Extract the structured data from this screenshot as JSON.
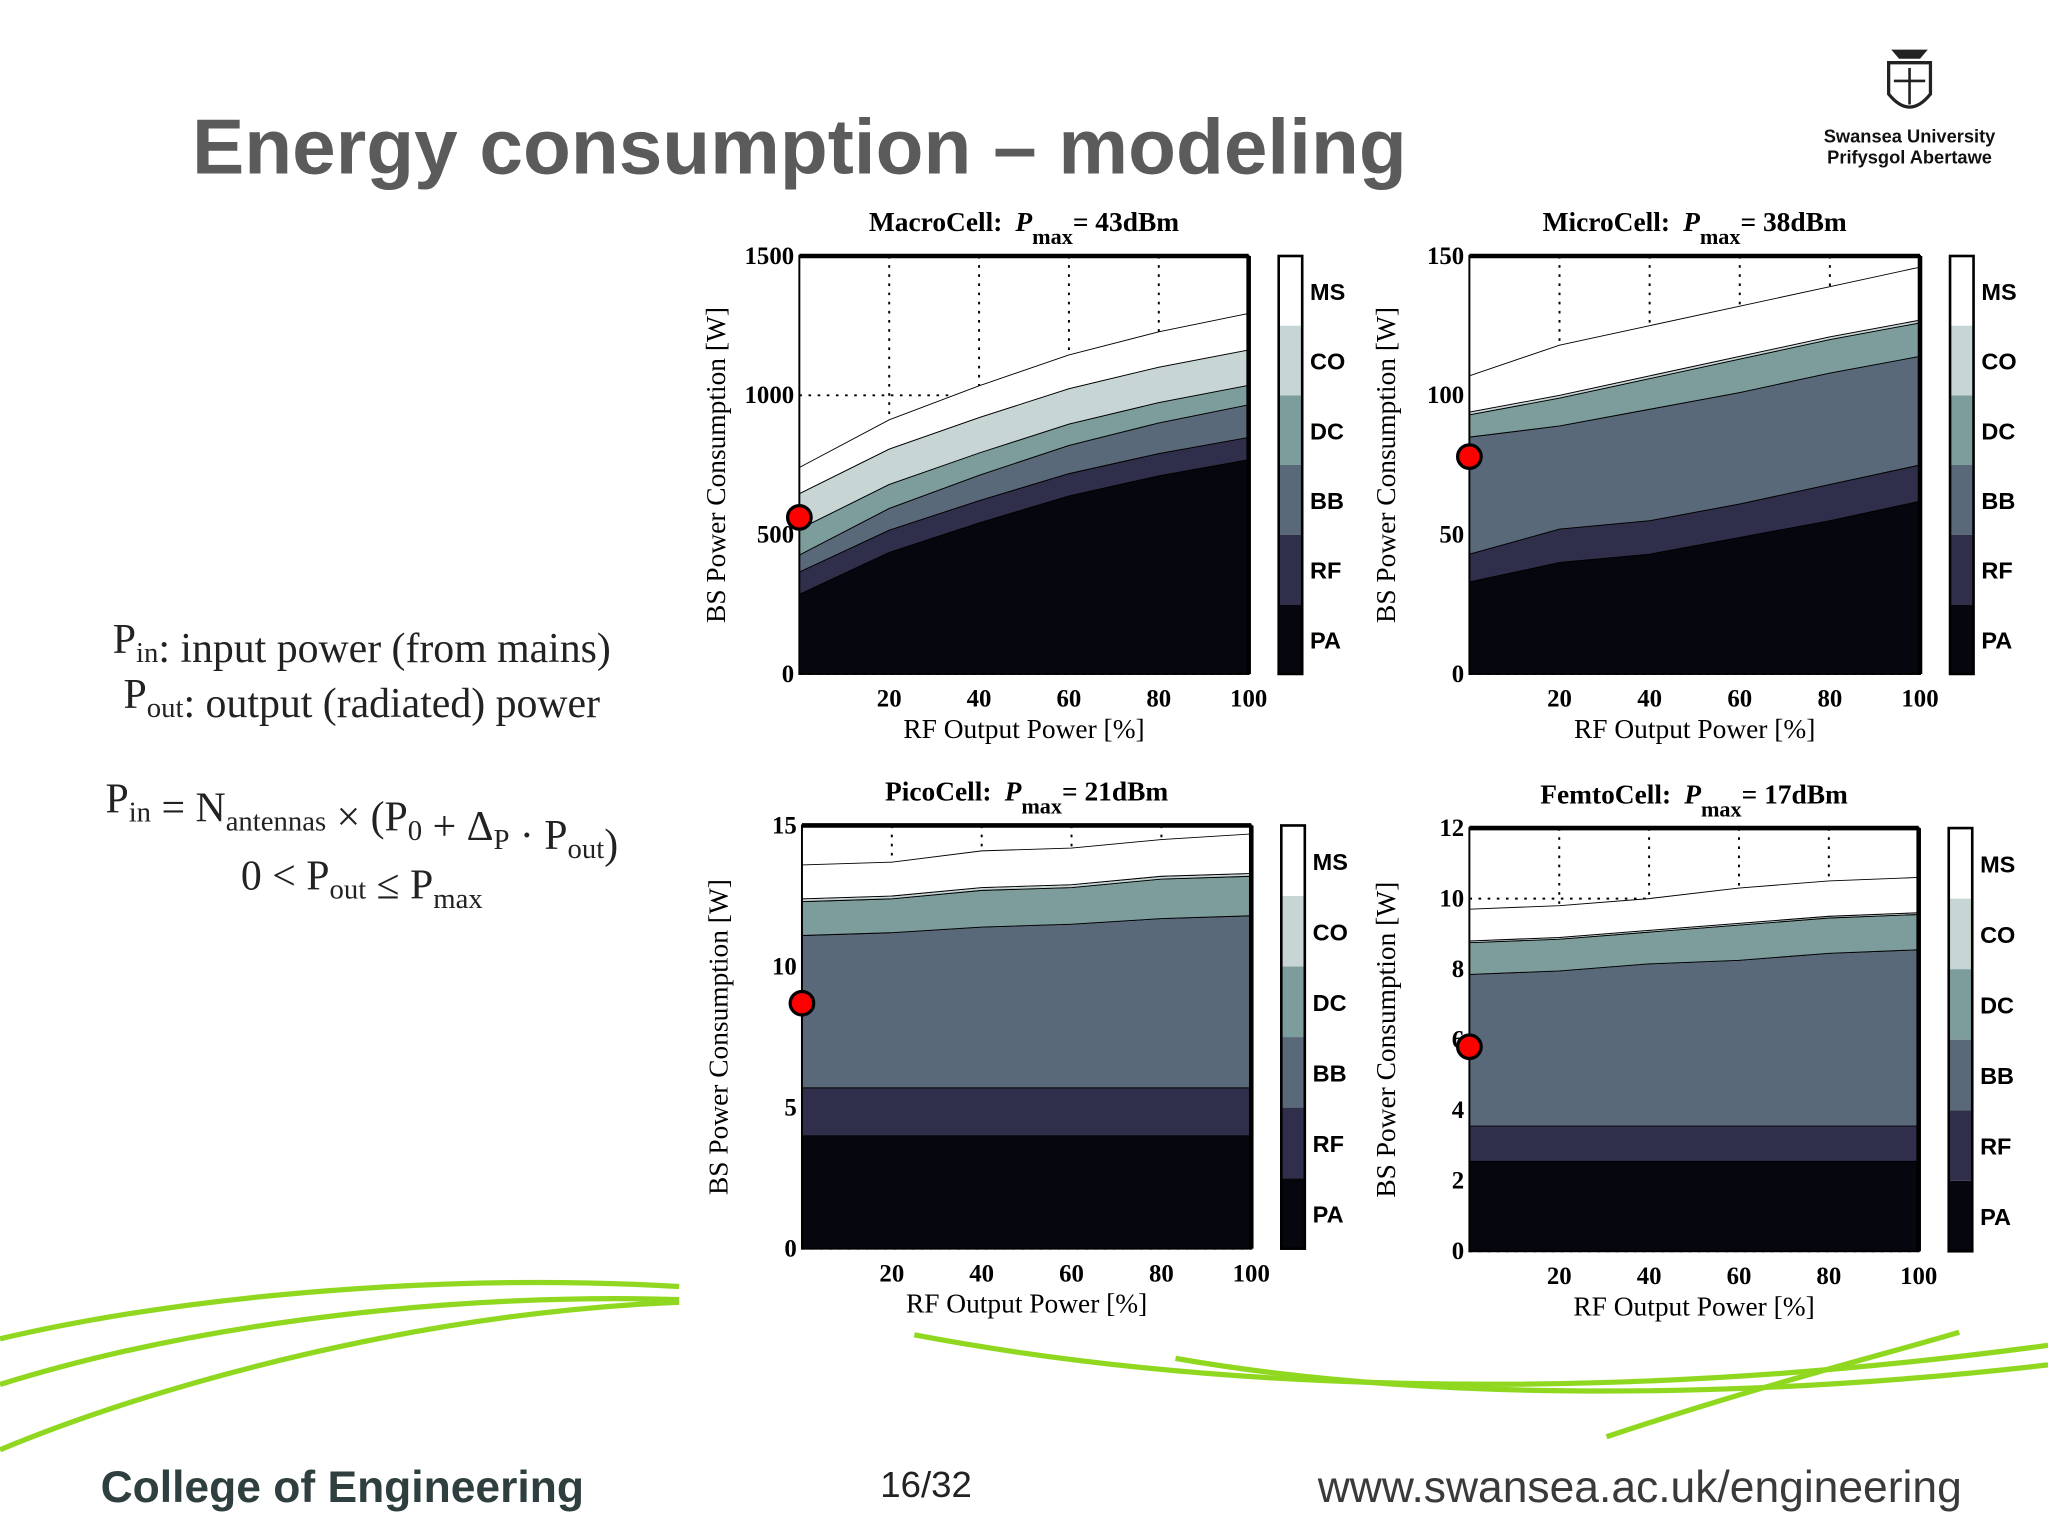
{
  "header": {
    "title": "Energy consumption – modeling",
    "logo_line1": "Swansea University",
    "logo_line2": "Prifysgol Abertawe"
  },
  "equations": [
    [
      {
        "t": "P"
      },
      {
        "sub": "in"
      },
      {
        "t": ": input power (from mains)"
      }
    ],
    [
      {
        "t": "P"
      },
      {
        "sub": "out"
      },
      {
        "t": ": output (radiated) power"
      }
    ],
    [
      {
        "t": "P"
      },
      {
        "sub": "in"
      },
      {
        "t": " = N"
      },
      {
        "sub": "antennas"
      },
      {
        "t": " × (P"
      },
      {
        "sub": "0"
      },
      {
        "t": " + Δ"
      },
      {
        "sub": "P"
      },
      {
        "t": " · P"
      },
      {
        "sub": "out"
      },
      {
        "t": ")"
      }
    ],
    [
      {
        "t": "0 < P"
      },
      {
        "sub": "out"
      },
      {
        "t": " ≤ P"
      },
      {
        "sub": "max"
      }
    ]
  ],
  "footer": {
    "college": "College of Engineering",
    "page": "16/32",
    "url": "www.swansea.ac.uk/engineering"
  },
  "chart_data": [
    {
      "type": "stacked_area",
      "title": "MacroCell:",
      "title_symbol": "P",
      "title_sub": "max",
      "title_value": "= 43dBm",
      "x_label": "RF Output Power [%]",
      "y_label": "BS Power Consumption [W]",
      "x": [
        0,
        20,
        40,
        60,
        80,
        100
      ],
      "xlim": [
        0,
        100
      ],
      "xticks": [
        20,
        40,
        60,
        80,
        100
      ],
      "ylim": [
        0,
        1500
      ],
      "yticks": [
        0,
        500,
        1000,
        1500
      ],
      "grid": true,
      "series": [
        {
          "name": "PA",
          "color": "#06060f",
          "values": [
            286,
            436,
            542,
            639,
            711,
            769
          ]
        },
        {
          "name": "RF",
          "color": "#2f2f4b",
          "values": [
            80,
            80,
            80,
            80,
            80,
            80
          ]
        },
        {
          "name": "BB",
          "color": "#5a6979",
          "values": [
            61,
            78,
            91,
            101,
            110,
            117
          ]
        },
        {
          "name": "DC",
          "color": "#7d9c9c",
          "values": [
            93,
            86,
            80,
            77,
            73,
            70
          ]
        },
        {
          "name": "CO",
          "color": "#c7d5d5",
          "values": [
            127,
            127,
            127,
            127,
            127,
            127
          ]
        },
        {
          "name": "MS",
          "color": "#ffffff",
          "values": [
            94,
            105,
            114,
            121,
            127,
            131
          ]
        }
      ],
      "marker": {
        "x": 0,
        "y": 562,
        "color": "#ff0000"
      }
    },
    {
      "type": "stacked_area",
      "title": "MicroCell:",
      "title_symbol": "P",
      "title_sub": "max",
      "title_value": "= 38dBm",
      "x_label": "RF Output Power [%]",
      "y_label": "BS Power Consumption [W]",
      "x": [
        0,
        20,
        40,
        60,
        80,
        100
      ],
      "xlim": [
        0,
        100
      ],
      "xticks": [
        20,
        40,
        60,
        80,
        100
      ],
      "ylim": [
        0,
        150
      ],
      "yticks": [
        0,
        50,
        100,
        150
      ],
      "grid": true,
      "series": [
        {
          "name": "PA",
          "color": "#06060f",
          "values": [
            33,
            40,
            43,
            49,
            55,
            62
          ]
        },
        {
          "name": "RF",
          "color": "#2f2f4b",
          "values": [
            10,
            12,
            12,
            12,
            13,
            13
          ]
        },
        {
          "name": "BB",
          "color": "#5a6979",
          "values": [
            42,
            37,
            40,
            40,
            40,
            39
          ]
        },
        {
          "name": "DC",
          "color": "#7d9c9c",
          "values": [
            8,
            10,
            11,
            12,
            12,
            12
          ]
        },
        {
          "name": "CO",
          "color": "#c7d5d5",
          "values": [
            1,
            1,
            1,
            1,
            1,
            1
          ]
        },
        {
          "name": "MS",
          "color": "#ffffff",
          "values": [
            13,
            18,
            18,
            18,
            18,
            19
          ]
        }
      ],
      "marker": {
        "x": 0,
        "y": 78,
        "color": "#ff0000"
      }
    },
    {
      "type": "stacked_area",
      "title": "PicoCell:",
      "title_symbol": "P",
      "title_sub": "max",
      "title_value": "= 21dBm",
      "x_label": "RF Output Power [%]",
      "y_label": "BS Power Consumption [W]",
      "x": [
        0,
        20,
        40,
        60,
        80,
        100
      ],
      "xlim": [
        0,
        100
      ],
      "xticks": [
        20,
        40,
        60,
        80,
        100
      ],
      "ylim": [
        0,
        15
      ],
      "yticks": [
        0,
        5,
        10,
        15
      ],
      "grid": true,
      "series": [
        {
          "name": "PA",
          "color": "#06060f",
          "values": [
            4,
            4,
            4,
            4,
            4,
            4
          ]
        },
        {
          "name": "RF",
          "color": "#2f2f4b",
          "values": [
            1.7,
            1.7,
            1.7,
            1.7,
            1.7,
            1.7
          ]
        },
        {
          "name": "BB",
          "color": "#5a6979",
          "values": [
            5.4,
            5.5,
            5.7,
            5.8,
            6.0,
            6.1
          ]
        },
        {
          "name": "DC",
          "color": "#7d9c9c",
          "values": [
            1.2,
            1.2,
            1.3,
            1.3,
            1.4,
            1.4
          ]
        },
        {
          "name": "CO",
          "color": "#c7d5d5",
          "values": [
            0.1,
            0.1,
            0.1,
            0.1,
            0.1,
            0.1
          ]
        },
        {
          "name": "MS",
          "color": "#ffffff",
          "values": [
            1.2,
            1.2,
            1.3,
            1.3,
            1.3,
            1.4
          ]
        }
      ],
      "marker": {
        "x": 0,
        "y": 8.7,
        "color": "#ff0000"
      }
    },
    {
      "type": "stacked_area",
      "title": "FemtoCell:",
      "title_symbol": "P",
      "title_sub": "max",
      "title_value": "= 17dBm",
      "x_label": "RF Output Power [%]",
      "y_label": "BS Power Consumption [W]",
      "x": [
        0,
        20,
        40,
        60,
        80,
        100
      ],
      "xlim": [
        0,
        100
      ],
      "xticks": [
        20,
        40,
        60,
        80,
        100
      ],
      "ylim": [
        0,
        12
      ],
      "yticks": [
        0,
        2,
        4,
        6,
        8,
        10,
        12
      ],
      "grid": true,
      "series": [
        {
          "name": "PA",
          "color": "#06060f",
          "values": [
            2.55,
            2.55,
            2.55,
            2.55,
            2.55,
            2.55
          ]
        },
        {
          "name": "RF",
          "color": "#2f2f4b",
          "values": [
            1,
            1,
            1,
            1,
            1,
            1
          ]
        },
        {
          "name": "BB",
          "color": "#5a6979",
          "values": [
            4.3,
            4.4,
            4.6,
            4.7,
            4.9,
            5.0
          ]
        },
        {
          "name": "DC",
          "color": "#7d9c9c",
          "values": [
            0.9,
            0.9,
            0.9,
            1.0,
            1.0,
            1.0
          ]
        },
        {
          "name": "CO",
          "color": "#c7d5d5",
          "values": [
            0.05,
            0.05,
            0.05,
            0.05,
            0.05,
            0.05
          ]
        },
        {
          "name": "MS",
          "color": "#ffffff",
          "values": [
            0.9,
            0.9,
            0.9,
            1.0,
            1.0,
            1.0
          ]
        }
      ],
      "marker": {
        "x": 0,
        "y": 5.8,
        "color": "#ff0000"
      }
    }
  ]
}
